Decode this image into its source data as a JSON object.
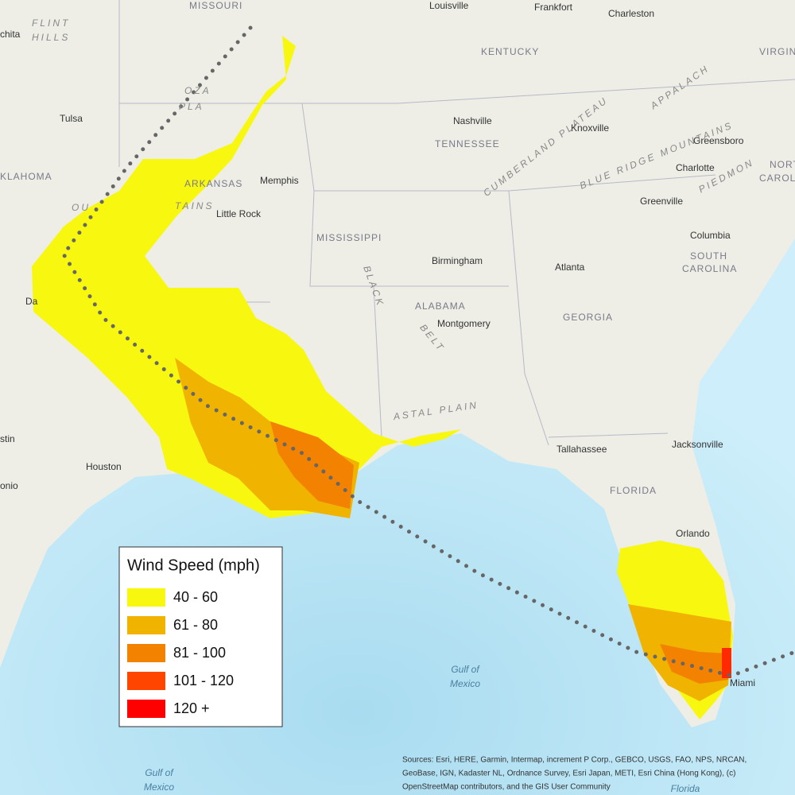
{
  "legend": {
    "title": "Wind Speed (mph)",
    "items": [
      {
        "label": "40 - 60",
        "color": "#f7f710"
      },
      {
        "label": "61 - 80",
        "color": "#f0b400"
      },
      {
        "label": "81 - 100",
        "color": "#f28200"
      },
      {
        "label": "101 - 120",
        "color": "#ff4500"
      },
      {
        "label": "120 +",
        "color": "#ff0000"
      }
    ]
  },
  "cities": [
    "Louisville",
    "Frankfort",
    "Charleston",
    "Tulsa",
    "Nashville",
    "Knoxville",
    "Greensboro",
    "Memphis",
    "Charlotte",
    "Little Rock",
    "Greenville",
    "Columbia",
    "Birmingham",
    "Atlanta",
    "Montgomery",
    "Tallahassee",
    "Jacksonville",
    "Houston",
    "Orlando",
    "Miami",
    "chita",
    "Da",
    "stin",
    "onio"
  ],
  "states": [
    "MISSOURI",
    "KENTUCKY",
    "TENNESSEE",
    "ARKANSAS",
    "MISSISSIPPI",
    "ALABAMA",
    "GEORGIA",
    "SOUTH",
    "CAROLINA",
    "FLORIDA",
    "KLAHOMA",
    "VIRGIN",
    "NORT",
    "CAROL"
  ],
  "regions": [
    "FLINT",
    "HILLS",
    "CUMBERLAND PLATEAU",
    "BLUE RIDGE MOUNTAINS",
    "APPALACH",
    "PIEDMON",
    "ASTAL PLAIN",
    "BLACK",
    "BELT",
    "OZA",
    "PLA",
    "TAINS",
    "OU"
  ],
  "water": [
    "Gulf of",
    "Mexico",
    "Gulf of",
    "Mexico",
    "Florida"
  ],
  "sources": [
    "Sources: Esri, HERE, Garmin, Intermap, increment P Corp., GEBCO, USGS, FAO, NPS, NRCAN,",
    "GeoBase, IGN, Kadaster NL, Ordnance Survey, Esri Japan, METI, Esri China (Hong Kong), (c)",
    "OpenStreetMap contributors, and the GIS User Community"
  ]
}
